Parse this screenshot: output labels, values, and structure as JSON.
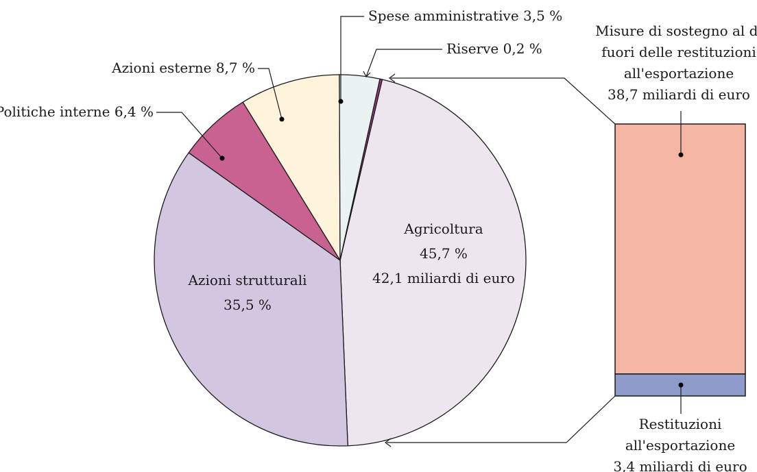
{
  "chart_data": {
    "type": "pie",
    "slices": [
      {
        "label": "Agricoltura",
        "value": 45.7,
        "value_text": "45,7 %",
        "amount_text": "42,1 miliardi di euro",
        "color": "#ede6ee"
      },
      {
        "label": "Azioni strutturali",
        "value": 35.5,
        "value_text": "35,5 %",
        "color": "#d3c6e0"
      },
      {
        "label": "Politiche interne",
        "value": 6.4,
        "value_text": "6,4 %",
        "color": "#c96290"
      },
      {
        "label": "Azioni esterne",
        "value": 8.7,
        "value_text": "8,7 %",
        "color": "#fef4dc"
      },
      {
        "label": "Spese amministrative",
        "value": 3.5,
        "value_text": "3,5 %",
        "color": "#eaf3f2"
      },
      {
        "label": "Riserve",
        "value": 0.2,
        "value_text": "0,2 %",
        "color": "#9c3a86"
      }
    ],
    "breakdown": {
      "of": "Agricoltura",
      "type": "stacked-bar",
      "segments": [
        {
          "label_lines": [
            "Misure di sostegno al di",
            "fuori delle restituzioni",
            "all'esportazione",
            "38,7 miliardi di euro"
          ],
          "value": 38.7,
          "color": "#f6b6a6"
        },
        {
          "label_lines": [
            "Restituzioni",
            "all'esportazione",
            "3,4 miliardi di euro"
          ],
          "value": 3.4,
          "color": "#8e9ccb"
        }
      ]
    }
  }
}
